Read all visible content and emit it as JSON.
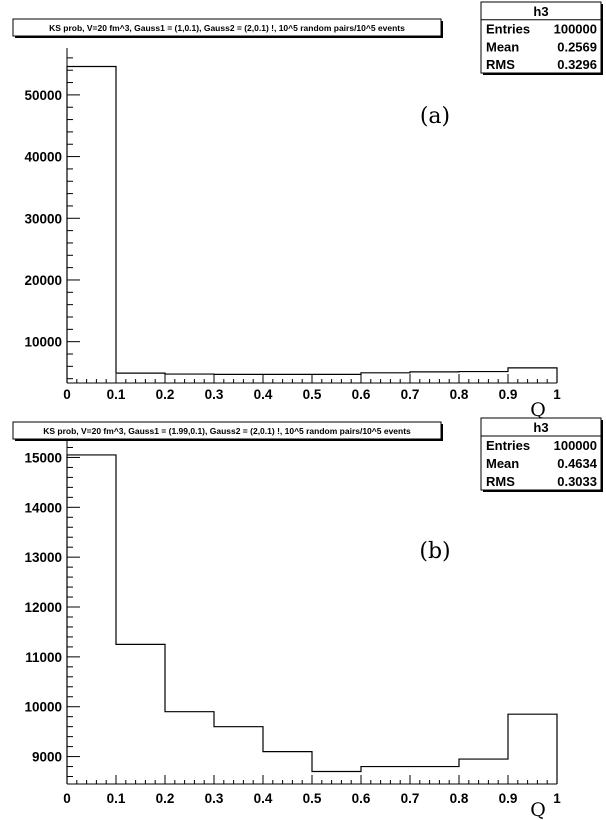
{
  "chart_data": [
    {
      "type": "histogram",
      "title": "KS prob, V=20 fm^3, Gauss1 = (1,0.1), Gauss2 = (2,0.1) !, 10^5 random  pairs/10^5 events",
      "panel_label": "(a)",
      "xlabel": "Q",
      "xlim": [
        0,
        1
      ],
      "ylim": [
        3300,
        57600
      ],
      "x_ticks": [
        "0",
        "0.1",
        "0.2",
        "0.3",
        "0.4",
        "0.5",
        "0.6",
        "0.7",
        "0.8",
        "0.9",
        "1"
      ],
      "y_ticks": [
        10000,
        20000,
        30000,
        40000,
        50000
      ],
      "y_tick_labels": [
        "10000",
        "20000",
        "30000",
        "40000",
        "50000"
      ],
      "bin_edges": [
        0,
        0.1,
        0.2,
        0.3,
        0.4,
        0.5,
        0.6,
        0.7,
        0.8,
        0.9,
        1.0
      ],
      "values": [
        54600,
        4900,
        4750,
        4700,
        4700,
        4700,
        4950,
        5100,
        5150,
        5750
      ],
      "stats": {
        "name": "h3",
        "rows": [
          {
            "label": "Entries",
            "value": "100000"
          },
          {
            "label": "Mean",
            "value": "0.2569"
          },
          {
            "label": "RMS",
            "value": "0.3296"
          }
        ]
      }
    },
    {
      "type": "histogram",
      "title": "KS prob, V=20 fm^3, Gauss1 = (1.99,0.1), Gauss2 = (2,0.1) !, 10^5 random pairs/10^5 events",
      "panel_label": "(b)",
      "xlabel": "Q",
      "xlim": [
        0,
        1
      ],
      "ylim": [
        8450,
        15350
      ],
      "x_ticks": [
        "0",
        "0.1",
        "0.2",
        "0.3",
        "0.4",
        "0.5",
        "0.6",
        "0.7",
        "0.8",
        "0.9",
        "1"
      ],
      "y_ticks": [
        9000,
        10000,
        11000,
        12000,
        13000,
        14000,
        15000
      ],
      "y_tick_labels": [
        "9000",
        "10000",
        "11000",
        "12000",
        "13000",
        "14000",
        "15000"
      ],
      "bin_edges": [
        0,
        0.1,
        0.2,
        0.3,
        0.4,
        0.5,
        0.6,
        0.7,
        0.8,
        0.9,
        1.0
      ],
      "values": [
        15050,
        11250,
        9900,
        9600,
        9100,
        8700,
        8800,
        8800,
        8950,
        9850
      ],
      "stats": {
        "name": "h3",
        "rows": [
          {
            "label": "Entries",
            "value": "100000"
          },
          {
            "label": "Mean",
            "value": "0.4634"
          },
          {
            "label": "RMS",
            "value": "0.3033"
          }
        ]
      }
    }
  ]
}
